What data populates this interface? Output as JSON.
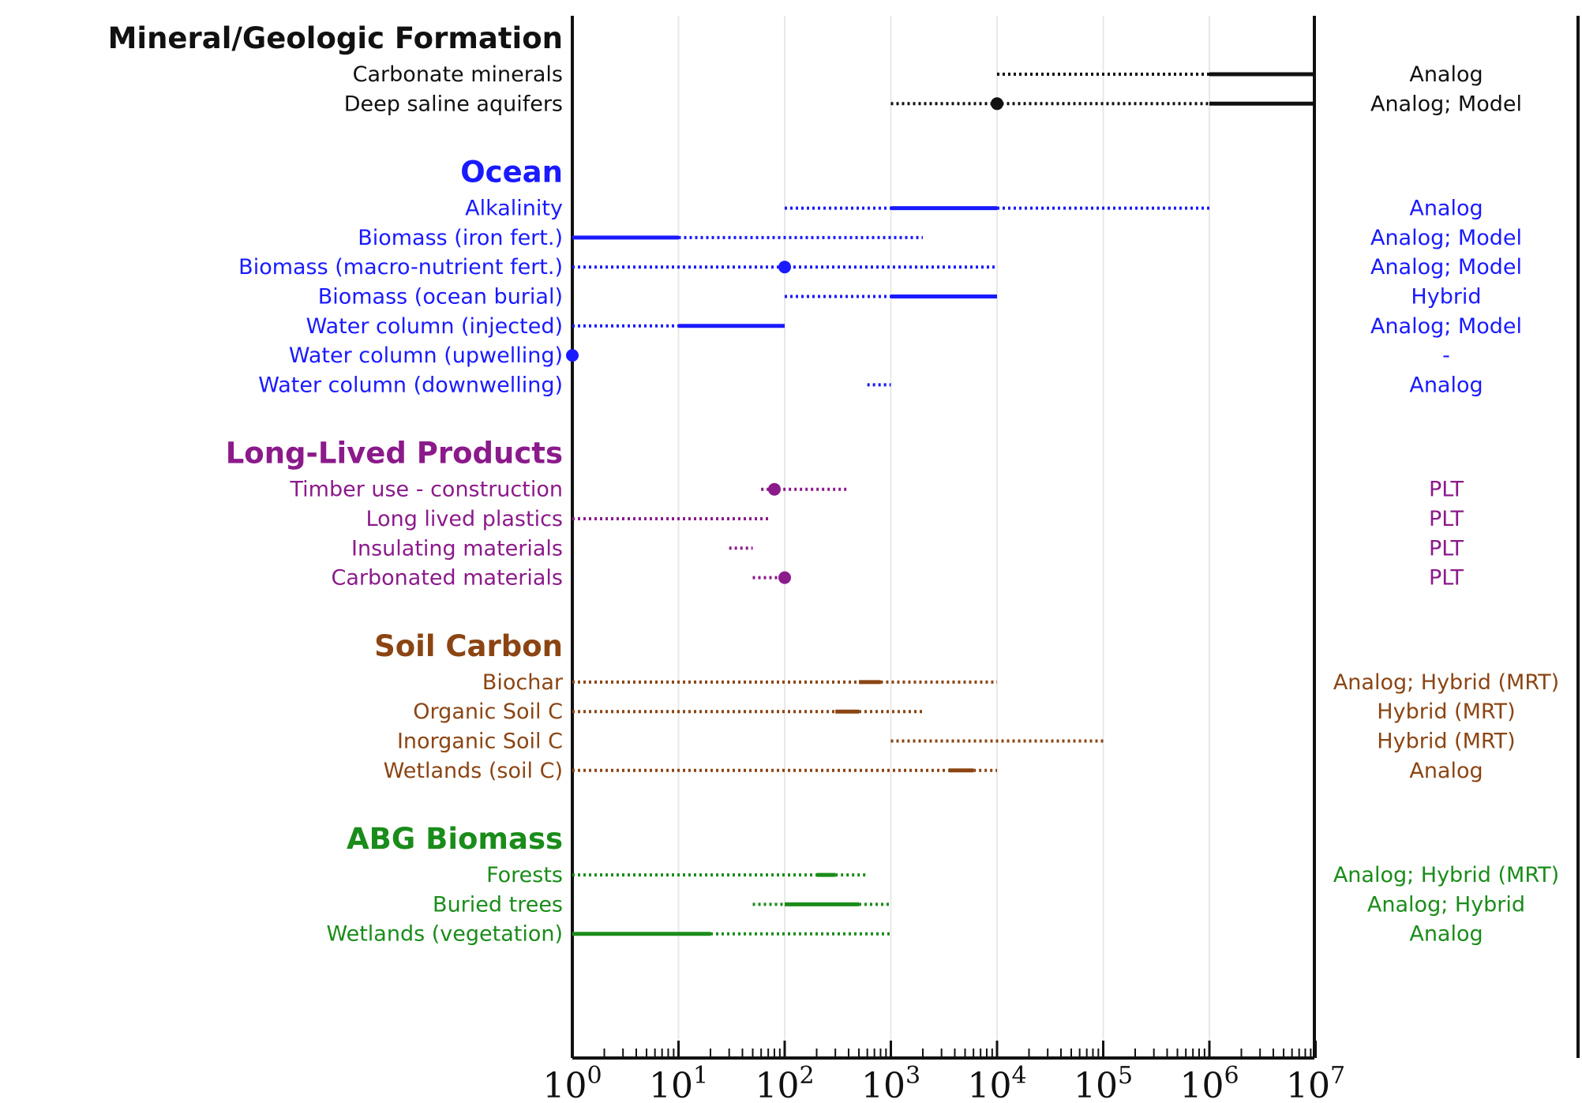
{
  "chart_data": {
    "type": "range",
    "title": "",
    "xlabel": "",
    "ylabel": "",
    "xscale": "log",
    "xlim": [
      1,
      10000000
    ],
    "grid": "vertical at decades",
    "legend": "none",
    "line_styles": {
      "solid": "solid line segment",
      "dotted": "dotted line segment",
      "point": "filled dot marker"
    },
    "x_tick_labels": [
      {
        "base": "10",
        "exp": "0"
      },
      {
        "base": "10",
        "exp": "1"
      },
      {
        "base": "10",
        "exp": "2"
      },
      {
        "base": "10",
        "exp": "3"
      },
      {
        "base": "10",
        "exp": "4"
      },
      {
        "base": "10",
        "exp": "5"
      },
      {
        "base": "10",
        "exp": "6"
      },
      {
        "base": "10",
        "exp": "7"
      }
    ],
    "groups": [
      {
        "name": "Mineral/Geologic Formation",
        "color": "#111111",
        "items": [
          {
            "label": "Carbonate minerals",
            "method": "Analog",
            "segments": [
              {
                "style": "dotted",
                "from": 10000,
                "to": 1000000
              },
              {
                "style": "solid",
                "from": 1000000,
                "to": 10000000
              }
            ]
          },
          {
            "label": "Deep saline aquifers",
            "method": "Analog; Model",
            "segments": [
              {
                "style": "dotted",
                "from": 1000,
                "to": 1000000
              },
              {
                "style": "solid",
                "from": 1000000,
                "to": 10000000
              }
            ],
            "points": [
              10000
            ]
          }
        ]
      },
      {
        "name": "Ocean",
        "color": "#1a1aff",
        "items": [
          {
            "label": "Alkalinity",
            "method": "Analog",
            "segments": [
              {
                "style": "dotted",
                "from": 100,
                "to": 1000
              },
              {
                "style": "solid",
                "from": 1000,
                "to": 10000
              },
              {
                "style": "dotted",
                "from": 10000,
                "to": 1000000
              }
            ]
          },
          {
            "label": "Biomass (iron fert.)",
            "method": "Analog; Model",
            "segments": [
              {
                "style": "solid",
                "from": 1,
                "to": 10
              },
              {
                "style": "dotted",
                "from": 10,
                "to": 2000
              }
            ]
          },
          {
            "label": "Biomass (macro-nutrient fert.)",
            "method": "Analog; Model",
            "segments": [
              {
                "style": "dotted",
                "from": 1,
                "to": 10000
              }
            ],
            "points": [
              100
            ]
          },
          {
            "label": "Biomass (ocean burial)",
            "method": "Hybrid",
            "segments": [
              {
                "style": "dotted",
                "from": 100,
                "to": 1000
              },
              {
                "style": "solid",
                "from": 1000,
                "to": 10000
              }
            ]
          },
          {
            "label": "Water column (injected)",
            "method": "Analog; Model",
            "segments": [
              {
                "style": "dotted",
                "from": 1,
                "to": 10
              },
              {
                "style": "solid",
                "from": 10,
                "to": 100
              }
            ]
          },
          {
            "label": "Water column (upwelling)",
            "method": "-",
            "segments": [],
            "points": [
              1
            ]
          },
          {
            "label": "Water column (downwelling)",
            "method": "Analog",
            "segments": [
              {
                "style": "dotted",
                "from": 600,
                "to": 1000
              }
            ]
          }
        ]
      },
      {
        "name": "Long-Lived Products",
        "color": "#8b1a8b",
        "items": [
          {
            "label": "Timber use - construction",
            "method": "PLT",
            "segments": [
              {
                "style": "dotted",
                "from": 60,
                "to": 400
              }
            ],
            "points": [
              80
            ]
          },
          {
            "label": "Long lived plastics",
            "method": "PLT",
            "segments": [
              {
                "style": "dotted",
                "from": 1,
                "to": 70
              }
            ]
          },
          {
            "label": "Insulating materials",
            "method": "PLT",
            "segments": [
              {
                "style": "dotted",
                "from": 30,
                "to": 50
              }
            ]
          },
          {
            "label": "Carbonated materials",
            "method": "PLT",
            "segments": [
              {
                "style": "dotted",
                "from": 50,
                "to": 100
              }
            ],
            "points": [
              100
            ]
          }
        ]
      },
      {
        "name": "Soil Carbon",
        "color": "#8b4513",
        "items": [
          {
            "label": "Biochar",
            "method": "Analog; Hybrid (MRT)",
            "segments": [
              {
                "style": "dotted",
                "from": 1,
                "to": 500
              },
              {
                "style": "solid",
                "from": 500,
                "to": 800
              },
              {
                "style": "dotted",
                "from": 800,
                "to": 10000
              }
            ]
          },
          {
            "label": "Organic Soil C",
            "method": "Hybrid (MRT)",
            "segments": [
              {
                "style": "dotted",
                "from": 1,
                "to": 300
              },
              {
                "style": "solid",
                "from": 300,
                "to": 500
              },
              {
                "style": "dotted",
                "from": 500,
                "to": 2000
              }
            ]
          },
          {
            "label": "Inorganic Soil C",
            "method": "Hybrid (MRT)",
            "segments": [
              {
                "style": "dotted",
                "from": 1000,
                "to": 100000
              }
            ]
          },
          {
            "label": "Wetlands (soil C)",
            "method": "Analog",
            "segments": [
              {
                "style": "dotted",
                "from": 1,
                "to": 3500
              },
              {
                "style": "solid",
                "from": 3500,
                "to": 6000
              },
              {
                "style": "dotted",
                "from": 6000,
                "to": 10000
              }
            ]
          }
        ]
      },
      {
        "name": "ABG Biomass",
        "color": "#1a8c1a",
        "items": [
          {
            "label": "Forests",
            "method": "Analog; Hybrid (MRT)",
            "segments": [
              {
                "style": "dotted",
                "from": 1,
                "to": 200
              },
              {
                "style": "solid",
                "from": 200,
                "to": 300
              },
              {
                "style": "dotted",
                "from": 300,
                "to": 600
              }
            ]
          },
          {
            "label": "Buried trees",
            "method": "Analog; Hybrid",
            "segments": [
              {
                "style": "dotted",
                "from": 50,
                "to": 100
              },
              {
                "style": "solid",
                "from": 100,
                "to": 500
              },
              {
                "style": "dotted",
                "from": 500,
                "to": 1000
              }
            ]
          },
          {
            "label": "Wetlands (vegetation)",
            "method": "Analog",
            "segments": [
              {
                "style": "solid",
                "from": 1,
                "to": 20
              },
              {
                "style": "dotted",
                "from": 20,
                "to": 1000
              }
            ]
          }
        ]
      }
    ]
  }
}
